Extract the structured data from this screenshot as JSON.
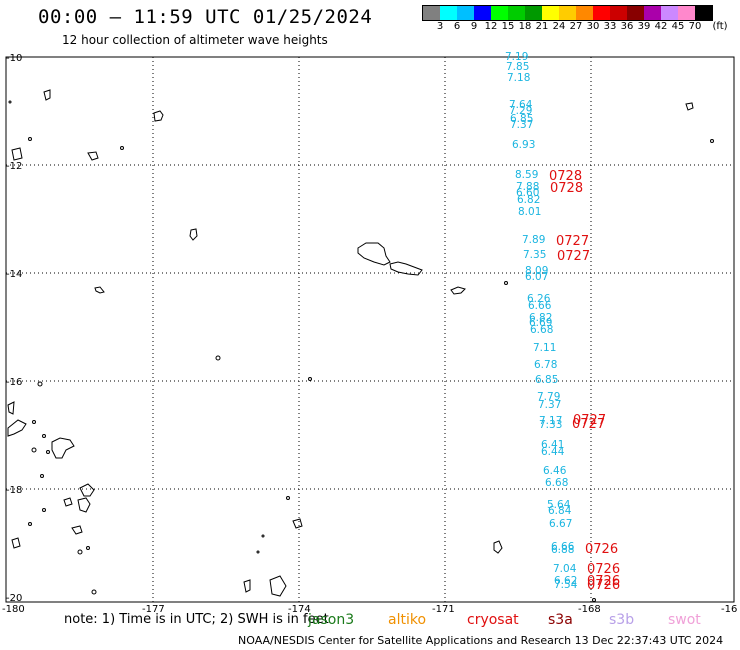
{
  "header": {
    "title": "00:00 – 11:59 UTC 01/25/2024",
    "subtitle": "12 hour collection of altimeter wave heights"
  },
  "colorbar": {
    "unit": "(ft)",
    "colors": [
      "#808080",
      "#00ffff",
      "#00bfff",
      "#0000ff",
      "#00ff00",
      "#00cc00",
      "#009900",
      "#ffff00",
      "#ffcc00",
      "#ff8800",
      "#ff0000",
      "#cc0000",
      "#880000",
      "#aa00aa",
      "#cc88ff",
      "#ff88cc",
      "#000000"
    ],
    "labels": [
      "3",
      "6",
      "9",
      "12",
      "15",
      "18",
      "21",
      "24",
      "27",
      "30",
      "33",
      "36",
      "39",
      "42",
      "45",
      "70"
    ]
  },
  "axes": {
    "lon_labels": [
      "-180",
      "-177",
      "-174",
      "-171",
      "-168",
      "-16"
    ],
    "lat_labels": [
      "-10",
      "-12",
      "-14",
      "-16",
      "-18",
      "-20"
    ]
  },
  "swh_values": [
    "7.19",
    "7.85",
    "7.18",
    "7.64",
    "7.29",
    "6.85",
    "7.37",
    "6.93",
    "8.59",
    "7.88",
    "6.60",
    "6.82",
    "8.01",
    "7.89",
    "7.35",
    "8.09",
    "6.07",
    "6.26",
    "6.66",
    "6.82",
    "6.69",
    "6.68",
    "7.11",
    "6.78",
    "6.85",
    "7.79",
    "7.37",
    "7.17",
    "7.33",
    "6.41",
    "6.44",
    "6.46",
    "6.68",
    "5.64",
    "6.84",
    "6.67",
    "6.66",
    "6.88",
    "7.04",
    "6.62",
    "7.54"
  ],
  "pass_labels": [
    "0728",
    "0728",
    "0727",
    "0727",
    "0727",
    "0727",
    "0726",
    "0726",
    "0726",
    "0726"
  ],
  "note": "note: 1) Time is in UTC; 2) SWH is in feet",
  "legend": [
    {
      "name": "jason3",
      "color": "#1a7a1a"
    },
    {
      "name": "altiko",
      "color": "#f09000"
    },
    {
      "name": "cryosat",
      "color": "#e01010"
    },
    {
      "name": "s3a",
      "color": "#8b0000"
    },
    {
      "name": "s3b",
      "color": "#b8a0e8"
    },
    {
      "name": "swot",
      "color": "#f0a0d8"
    }
  ],
  "footer": "NOAA/NESDIS Center for Satellite Applications and Research   13 Dec 22:37:43 UTC 2024"
}
